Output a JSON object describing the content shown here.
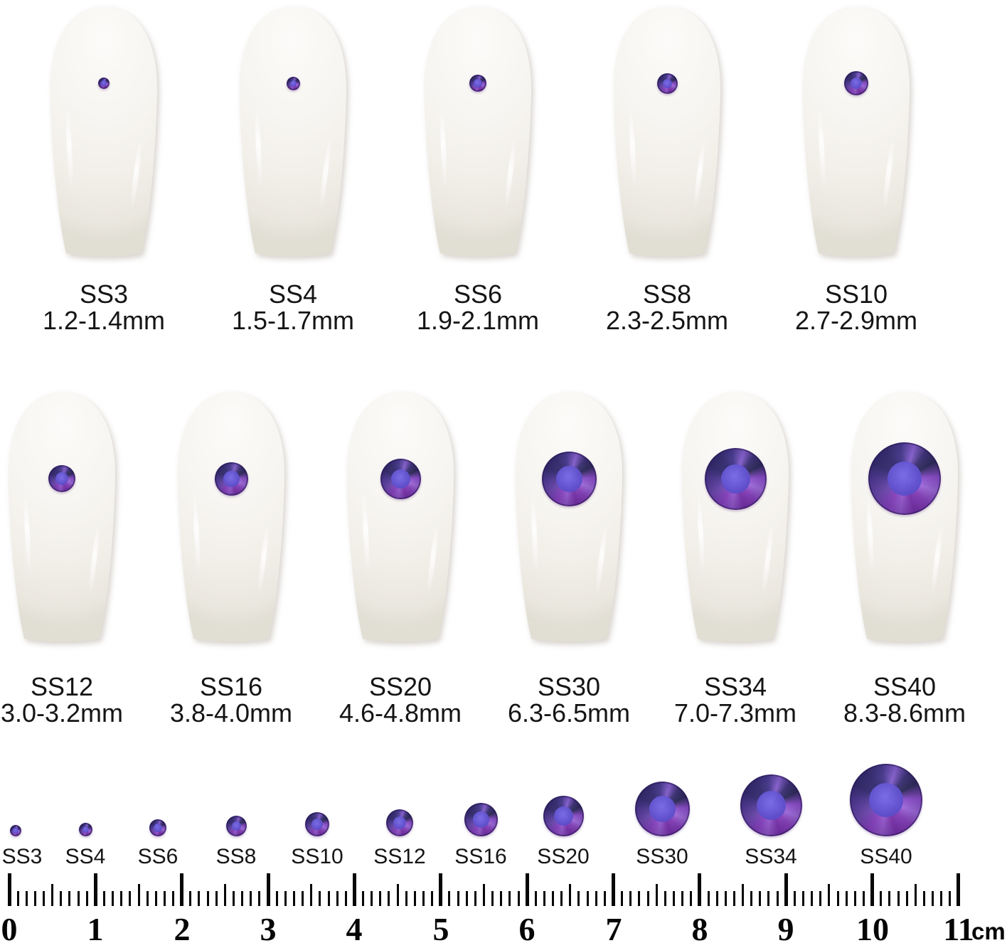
{
  "rows": [
    {
      "items": [
        {
          "size": "SS3",
          "range": "1.2-1.4mm",
          "mm_min": 1.2,
          "mm_max": 1.4
        },
        {
          "size": "SS4",
          "range": "1.5-1.7mm",
          "mm_min": 1.5,
          "mm_max": 1.7
        },
        {
          "size": "SS6",
          "range": "1.9-2.1mm",
          "mm_min": 1.9,
          "mm_max": 2.1
        },
        {
          "size": "SS8",
          "range": "2.3-2.5mm",
          "mm_min": 2.3,
          "mm_max": 2.5
        },
        {
          "size": "SS10",
          "range": "2.7-2.9mm",
          "mm_min": 2.7,
          "mm_max": 2.9
        }
      ]
    },
    {
      "items": [
        {
          "size": "SS12",
          "range": "3.0-3.2mm",
          "mm_min": 3.0,
          "mm_max": 3.2
        },
        {
          "size": "SS16",
          "range": "3.8-4.0mm",
          "mm_min": 3.8,
          "mm_max": 4.0
        },
        {
          "size": "SS20",
          "range": "4.6-4.8mm",
          "mm_min": 4.6,
          "mm_max": 4.8
        },
        {
          "size": "SS30",
          "range": "6.3-6.5mm",
          "mm_min": 6.3,
          "mm_max": 6.5
        },
        {
          "size": "SS34",
          "range": "7.0-7.3mm",
          "mm_min": 7.0,
          "mm_max": 7.3
        },
        {
          "size": "SS40",
          "range": "8.3-8.6mm",
          "mm_min": 8.3,
          "mm_max": 8.6
        }
      ]
    }
  ],
  "legend": {
    "items": [
      {
        "size": "SS3",
        "mm": 1.3
      },
      {
        "size": "SS4",
        "mm": 1.6
      },
      {
        "size": "SS6",
        "mm": 2.0
      },
      {
        "size": "SS8",
        "mm": 2.4
      },
      {
        "size": "SS10",
        "mm": 2.8
      },
      {
        "size": "SS12",
        "mm": 3.1
      },
      {
        "size": "SS16",
        "mm": 3.9
      },
      {
        "size": "SS20",
        "mm": 4.7
      },
      {
        "size": "SS30",
        "mm": 6.4
      },
      {
        "size": "SS34",
        "mm": 7.15
      },
      {
        "size": "SS40",
        "mm": 8.45
      }
    ]
  },
  "ruler": {
    "numbers": [
      "0",
      "1",
      "2",
      "3",
      "4",
      "5",
      "6",
      "7",
      "8",
      "9",
      "10",
      "11"
    ],
    "unit": "cm",
    "length_cm": 11,
    "ticks_per_cm": 10
  },
  "colors": {
    "background": "#ffffff",
    "nail": "#f5f3ee",
    "gem_dark": "#2a2166",
    "gem_purple": "#8a3fc4",
    "gem_light": "#a06ade",
    "gem_core": "#6253d0",
    "text": "#151515",
    "ruler": "#060606"
  }
}
